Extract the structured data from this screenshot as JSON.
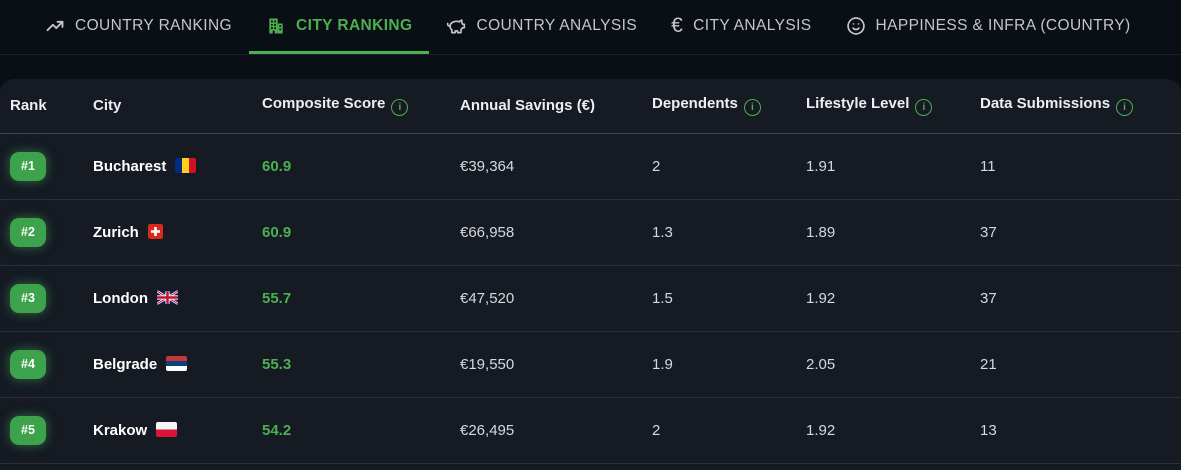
{
  "tabs": [
    {
      "label": "COUNTRY RANKING",
      "icon": "trending-up-icon",
      "active": false
    },
    {
      "label": "CITY RANKING",
      "icon": "building-icon",
      "active": true
    },
    {
      "label": "COUNTRY ANALYSIS",
      "icon": "piggy-bank-icon",
      "active": false
    },
    {
      "label": "CITY ANALYSIS",
      "icon": "euro-icon",
      "active": false
    },
    {
      "label": "HAPPINESS & INFRA (COUNTRY)",
      "icon": "smiley-icon",
      "active": false
    }
  ],
  "table": {
    "columns": [
      {
        "label": "Rank",
        "info": false
      },
      {
        "label": "City",
        "info": false
      },
      {
        "label": "Composite Score",
        "info": true
      },
      {
        "label": "Annual Savings (€)",
        "info": false
      },
      {
        "label": "Dependents",
        "info": true
      },
      {
        "label": "Lifestyle Level",
        "info": true
      },
      {
        "label": "Data Submissions",
        "info": true
      }
    ],
    "rows": [
      {
        "rank": "#1",
        "city": "Bucharest",
        "flag": "romania",
        "score": "60.9",
        "savings": "€39,364",
        "dependents": "2",
        "lifestyle": "1.91",
        "submissions": "11"
      },
      {
        "rank": "#2",
        "city": "Zurich",
        "flag": "switzerland",
        "score": "60.9",
        "savings": "€66,958",
        "dependents": "1.3",
        "lifestyle": "1.89",
        "submissions": "37"
      },
      {
        "rank": "#3",
        "city": "London",
        "flag": "uk",
        "score": "55.7",
        "savings": "€47,520",
        "dependents": "1.5",
        "lifestyle": "1.92",
        "submissions": "37"
      },
      {
        "rank": "#4",
        "city": "Belgrade",
        "flag": "serbia",
        "score": "55.3",
        "savings": "€19,550",
        "dependents": "1.9",
        "lifestyle": "2.05",
        "submissions": "21"
      },
      {
        "rank": "#5",
        "city": "Krakow",
        "flag": "poland",
        "score": "54.2",
        "savings": "€26,495",
        "dependents": "2",
        "lifestyle": "1.92",
        "submissions": "13"
      }
    ]
  },
  "colors": {
    "accent_green": "#4caf50",
    "badge_green": "#3da24c",
    "page_bg": "#0a0e15",
    "card_bg": "#151a23",
    "inactive_tab_text": "#c3c6cb"
  }
}
